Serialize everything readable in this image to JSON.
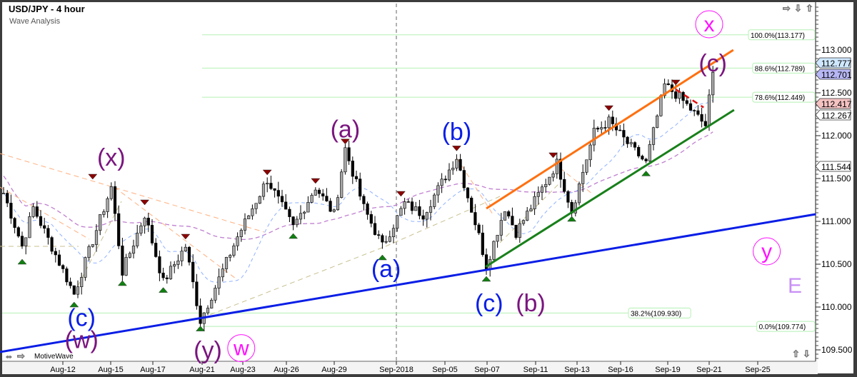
{
  "header": {
    "title": "USD/JPY - 4 hour",
    "subtitle": "Wave Analysis",
    "brand": "MotiveWave"
  },
  "chart_data": {
    "type": "candlestick",
    "title": "USD/JPY - 4 hour",
    "ylim": [
      109.4,
      113.55
    ],
    "y_ticks": [
      "113.000",
      "112.500",
      "112.000",
      "111.500",
      "111.000",
      "110.500",
      "110.000",
      "109.500"
    ],
    "x_ticks": [
      "Aug-12",
      "Aug-15",
      "Aug-17",
      "Aug-21",
      "Aug-23",
      "Aug-26",
      "Aug-29",
      "Sep-2018",
      "Sep-05",
      "Sep-07",
      "Sep-11",
      "Sep-13",
      "Sep-16",
      "Sep-19",
      "Sep-21",
      "Sep-25"
    ],
    "price_path_note_bars": "4-hour bars",
    "price_pivots": [
      [
        0,
        111.33
      ],
      [
        5,
        110.71
      ],
      [
        8,
        111.16
      ],
      [
        19,
        110.15
      ],
      [
        29,
        111.4
      ],
      [
        32,
        110.41
      ],
      [
        38,
        111.08
      ],
      [
        43,
        110.29
      ],
      [
        49,
        110.71
      ],
      [
        53,
        109.84
      ],
      [
        63,
        110.82
      ],
      [
        71,
        111.49
      ],
      [
        78,
        110.93
      ],
      [
        84,
        111.4
      ],
      [
        89,
        111.08
      ],
      [
        92,
        111.85
      ],
      [
        97,
        111.16
      ],
      [
        102,
        110.71
      ],
      [
        108,
        111.21
      ],
      [
        113,
        111.08
      ],
      [
        122,
        111.75
      ],
      [
        128,
        110.83
      ],
      [
        130,
        110.48
      ],
      [
        135,
        111.16
      ],
      [
        138,
        110.87
      ],
      [
        149,
        111.68
      ],
      [
        153,
        111.12
      ],
      [
        159,
        112.04
      ],
      [
        163,
        112.17
      ],
      [
        168,
        111.91
      ],
      [
        173,
        111.68
      ],
      [
        178,
        112.59
      ],
      [
        182,
        112.45
      ],
      [
        189,
        112.12
      ],
      [
        191,
        112.74
      ]
    ],
    "swing_highs": [
      [
        24,
        111.45
      ],
      [
        38,
        111.15
      ],
      [
        49,
        110.75
      ],
      [
        71,
        111.5
      ],
      [
        84,
        111.4
      ],
      [
        92,
        111.86
      ],
      [
        107,
        111.25
      ],
      [
        122,
        111.78
      ],
      [
        148,
        111.7
      ],
      [
        163,
        112.25
      ],
      [
        181,
        112.55
      ]
    ],
    "swing_lows": [
      [
        5,
        110.6
      ],
      [
        19,
        110.1
      ],
      [
        32,
        110.35
      ],
      [
        43,
        110.27
      ],
      [
        53,
        109.82
      ],
      [
        78,
        110.9
      ],
      [
        102,
        110.65
      ],
      [
        130,
        110.4
      ],
      [
        153,
        111.1
      ],
      [
        173,
        111.63
      ]
    ],
    "fib_levels": [
      {
        "label": "100.0%(113.177)",
        "price": 113.177
      },
      {
        "label": "88.6%(112.789)",
        "price": 112.789
      },
      {
        "label": "78.6%(112.449)",
        "price": 112.449
      },
      {
        "label": "38.2%(109.930)",
        "price": 109.93
      },
      {
        "label": "0.0%(109.774)",
        "price": 109.774
      }
    ],
    "price_tags": [
      {
        "value": "112.777",
        "price": 112.777,
        "color": "#cfe8ff"
      },
      {
        "value": "112.701",
        "price": 112.701,
        "color": "#b7b7f5"
      },
      {
        "value": "112.417",
        "price": 112.417,
        "color": "#f5c2c2"
      },
      {
        "value": "112.267",
        "price": 112.267,
        "color": "#ffffff"
      },
      {
        "value": "111.544",
        "price": 111.544,
        "color": "#ffffff"
      }
    ],
    "trendlines": [
      {
        "name": "long-term support",
        "color": "#0a1ee6",
        "width": 3,
        "from": [
          -1,
          109.475
        ],
        "to": [
          218.7,
          111.083
        ]
      },
      {
        "name": "channel top",
        "color": "#ff7010",
        "width": 3,
        "from": [
          130,
          111.15
        ],
        "to": [
          196.5,
          113.0
        ]
      },
      {
        "name": "channel bottom",
        "color": "#18801a",
        "width": 3,
        "from": [
          129.8,
          110.47
        ],
        "to": [
          196.7,
          112.3
        ]
      },
      {
        "name": "red resistance",
        "color": "#e01010",
        "width": 2.5,
        "dash": "8,6",
        "from": [
          181,
          112.54
        ],
        "to": [
          188.5,
          112.33
        ]
      }
    ],
    "wave_labels": [
      {
        "text": "(x)",
        "color": "#7a157f",
        "bar": 29,
        "price": 111.75
      },
      {
        "text": "(a)",
        "color": "#7a157f",
        "bar": 92,
        "price": 112.08
      },
      {
        "text": "(c)",
        "color": "#7a157f",
        "bar": 191,
        "price": 112.85
      },
      {
        "text": "(w)",
        "color": "#7a157f",
        "bar": 21,
        "price": 109.62
      },
      {
        "text": "(y)",
        "color": "#7a157f",
        "bar": 55,
        "price": 109.5
      },
      {
        "text": "(b)",
        "color": "#7a157f",
        "bar": 140,
        "price": 110.05
      },
      {
        "text": "(c)",
        "color": "#0a1ee6",
        "bar": 21,
        "price": 109.88
      },
      {
        "text": "(a)",
        "color": "#0a1ee6",
        "bar": 103,
        "price": 110.45
      },
      {
        "text": "(b)",
        "color": "#0a1ee6",
        "bar": 122,
        "price": 112.05
      },
      {
        "text": "(c)",
        "color": "#0a1ee6",
        "bar": 131.5,
        "price": 110.05
      }
    ],
    "circled_labels": [
      {
        "text": "x",
        "color": "#ff10ff",
        "bar": 190,
        "price": 113.3
      },
      {
        "text": "w",
        "color": "#ff10ff",
        "bar": 64,
        "price": 109.52
      },
      {
        "text": "y",
        "color": "#ff10ff",
        "bar": 205.5,
        "price": 110.65
      }
    ],
    "degree_label": {
      "text": "E",
      "color": "#c890f5"
    }
  },
  "colors": {
    "bull_fill": "#a8a8a8",
    "bear_fill": "#000000",
    "ma_fast": "#8fb0ff",
    "ma_slow": "#c080d0",
    "fib": "#b5f0b5"
  }
}
